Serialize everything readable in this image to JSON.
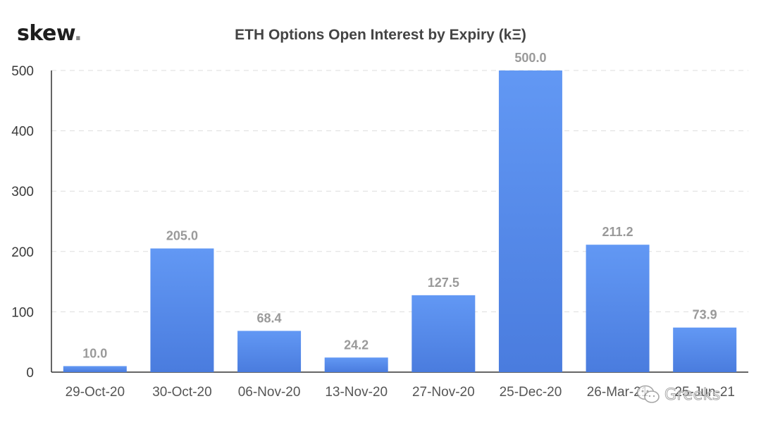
{
  "brand": {
    "name": "skew",
    "dot": "."
  },
  "watermark": {
    "text": "Greeks",
    "icon": "wechat-icon"
  },
  "colors": {
    "bar_top": "#6298f4",
    "bar_bottom": "#4a7cde",
    "grid": "#dddddd",
    "axis": "#333333"
  },
  "chart_data": {
    "type": "bar",
    "title": "ETH Options Open Interest by Expiry (kΞ)",
    "xlabel": "",
    "ylabel": "",
    "categories": [
      "29-Oct-20",
      "30-Oct-20",
      "06-Nov-20",
      "13-Nov-20",
      "27-Nov-20",
      "25-Dec-20",
      "26-Mar-21",
      "25-Jun-21"
    ],
    "values": [
      10.0,
      205.0,
      68.4,
      24.2,
      127.5,
      500.0,
      211.2,
      73.9
    ],
    "data_labels": [
      "10.0",
      "205.0",
      "68.4",
      "24.2",
      "127.5",
      "500.0",
      "211.2",
      "73.9"
    ],
    "ylim": [
      0,
      500
    ],
    "yticks": [
      0,
      100,
      200,
      300,
      400,
      500
    ],
    "ytick_labels": [
      "0",
      "100",
      "200",
      "300",
      "400",
      "500"
    ],
    "grid": true,
    "legend": "none"
  }
}
